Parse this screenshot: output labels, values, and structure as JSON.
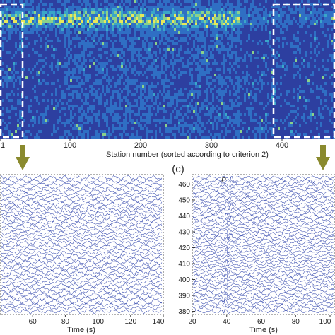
{
  "chart_data": [
    {
      "type": "heatmap",
      "xlabel": "Station number (sorted according to criterion 2)",
      "x_ticks": [
        1,
        100,
        200,
        300,
        400
      ],
      "xlim": [
        1,
        475
      ],
      "colormap": [
        "#2a1f7a",
        "#2d3fa0",
        "#2f6fc4",
        "#3aa6c8",
        "#8bd18a",
        "#e8e85a"
      ],
      "highlight_boxes": [
        {
          "name": "left",
          "x_range": [
            1,
            33
          ]
        },
        {
          "name": "right",
          "x_range": [
            387,
            475
          ]
        }
      ]
    },
    {
      "type": "line",
      "xlabel": "Time (s)",
      "x_ticks": [
        60,
        80,
        100,
        120,
        140
      ],
      "xlim": [
        40,
        140
      ],
      "trace_count": 42,
      "trace_color": "#3b4fb0"
    },
    {
      "type": "line",
      "xlabel": "Time (s)",
      "x_ticks": [
        20,
        40,
        60,
        80,
        100
      ],
      "xlim": [
        20,
        100
      ],
      "y_ticks": [
        380,
        390,
        400,
        410,
        420,
        430,
        440,
        450,
        460
      ],
      "ylim": [
        378,
        466
      ],
      "annotation": "P",
      "trace_count": 46,
      "trace_color": "#3b4fb0"
    }
  ],
  "panel_label": "(c)",
  "arrow_color": "#8a8a2e"
}
